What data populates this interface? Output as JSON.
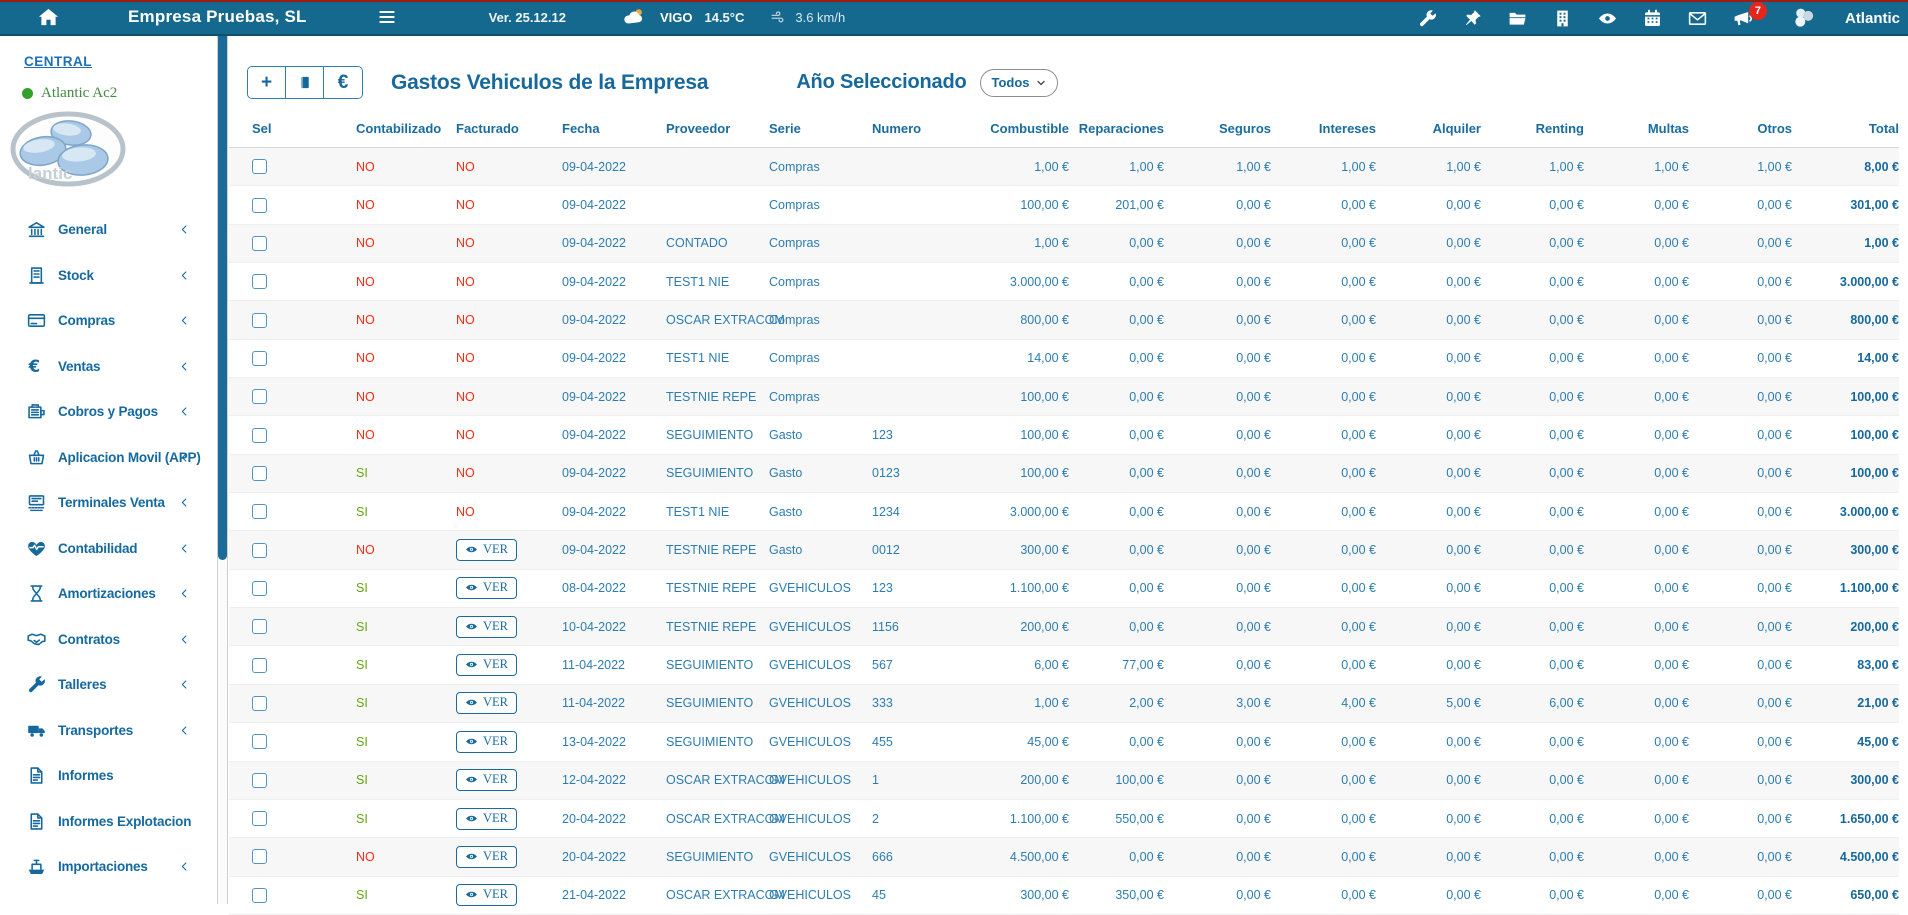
{
  "colors": {
    "topbar_bg": "#15698e",
    "topbar_red_line": "#9e1d12",
    "menu_blue": "#15699f",
    "header_blue": "#1a6c9e",
    "cell_blue": "#2c7cb0",
    "si_green": "#63a611",
    "no_red": "#f92a12",
    "badge_red": "#e5261d",
    "account_green": "#418a41",
    "row_stripe": "#f7f7f7"
  },
  "topbar": {
    "company": "Empresa Pruebas, SL",
    "version": "Ver. 25.12.12",
    "weather_city": "VIGO",
    "weather_temp": "14.5°C",
    "weather_wind": "3.6 km/h",
    "notification_count": "7",
    "brand": "Atlantic",
    "left_icons": [
      "home-icon",
      "menu-icon",
      "cloud-icon",
      "wind-icon"
    ],
    "right_icons": [
      "wrench-icon",
      "pin-icon",
      "folder-icon",
      "building-icon",
      "eye-icon",
      "calendar-icon",
      "mail-icon",
      "megaphone-icon",
      "balloons-icon"
    ]
  },
  "sidebar": {
    "section_label": "CENTRAL",
    "account_label": "Atlantic Ac2",
    "logo_text": "lantic",
    "items": [
      {
        "label": "General",
        "icon": "bank-icon",
        "chevron": true
      },
      {
        "label": "Stock",
        "icon": "building-outline-icon",
        "chevron": true
      },
      {
        "label": "Compras",
        "icon": "card-icon",
        "chevron": true
      },
      {
        "label": "Ventas",
        "icon": "euro-icon",
        "chevron": true
      },
      {
        "label": "Cobros y Pagos",
        "icon": "wallet-icon",
        "chevron": true
      },
      {
        "label": "Aplicacion Movil (APP)",
        "icon": "basket-icon",
        "chevron": true
      },
      {
        "label": "Terminales Venta",
        "icon": "terminal-icon",
        "chevron": true
      },
      {
        "label": "Contabilidad",
        "icon": "heartbeat-icon",
        "chevron": true
      },
      {
        "label": "Amortizaciones",
        "icon": "hourglass-icon",
        "chevron": true
      },
      {
        "label": "Contratos",
        "icon": "handshake-icon",
        "chevron": true
      },
      {
        "label": "Talleres",
        "icon": "wrench-icon",
        "chevron": true
      },
      {
        "label": "Transportes",
        "icon": "truck-icon",
        "chevron": true
      },
      {
        "label": "Informes",
        "icon": "document-icon",
        "chevron": false
      },
      {
        "label": "Informes Explotacion",
        "icon": "document-icon",
        "chevron": false
      },
      {
        "label": "Importaciones",
        "icon": "ship-icon",
        "chevron": true
      }
    ]
  },
  "toolbar": {
    "add_label": "+",
    "book_icon": "book-icon",
    "euro_label": "€"
  },
  "page": {
    "title": "Gastos Vehiculos de la Empresa",
    "year_label": "Año Seleccionado",
    "year_value": "Todos"
  },
  "table": {
    "ver_label": "VER",
    "columns": [
      "Sel",
      "Contabilizado",
      "Facturado",
      "Fecha",
      "Proveedor",
      "Serie",
      "Numero",
      "Combustible",
      "Reparaciones",
      "Seguros",
      "Intereses",
      "Alquiler",
      "Renting",
      "Multas",
      "Otros",
      "Total"
    ],
    "rows": [
      [
        "NO",
        "NO",
        "09-04-2022",
        "",
        "Compras",
        "",
        "1,00 €",
        "1,00 €",
        "1,00 €",
        "1,00 €",
        "1,00 €",
        "1,00 €",
        "1,00 €",
        "1,00 €",
        "8,00 €"
      ],
      [
        "NO",
        "NO",
        "09-04-2022",
        "",
        "Compras",
        "",
        "100,00 €",
        "201,00 €",
        "0,00 €",
        "0,00 €",
        "0,00 €",
        "0,00 €",
        "0,00 €",
        "0,00 €",
        "301,00 €"
      ],
      [
        "NO",
        "NO",
        "09-04-2022",
        "CONTADO",
        "Compras",
        "",
        "1,00 €",
        "0,00 €",
        "0,00 €",
        "0,00 €",
        "0,00 €",
        "0,00 €",
        "0,00 €",
        "0,00 €",
        "1,00 €"
      ],
      [
        "NO",
        "NO",
        "09-04-2022",
        "TEST1 NIE",
        "Compras",
        "",
        "3.000,00 €",
        "0,00 €",
        "0,00 €",
        "0,00 €",
        "0,00 €",
        "0,00 €",
        "0,00 €",
        "0,00 €",
        "3.000,00 €"
      ],
      [
        "NO",
        "NO",
        "09-04-2022",
        "OSCAR EXTRACOM",
        "Compras",
        "",
        "800,00 €",
        "0,00 €",
        "0,00 €",
        "0,00 €",
        "0,00 €",
        "0,00 €",
        "0,00 €",
        "0,00 €",
        "800,00 €"
      ],
      [
        "NO",
        "NO",
        "09-04-2022",
        "TEST1 NIE",
        "Compras",
        "",
        "14,00 €",
        "0,00 €",
        "0,00 €",
        "0,00 €",
        "0,00 €",
        "0,00 €",
        "0,00 €",
        "0,00 €",
        "14,00 €"
      ],
      [
        "NO",
        "NO",
        "09-04-2022",
        "TESTNIE REPE",
        "Compras",
        "",
        "100,00 €",
        "0,00 €",
        "0,00 €",
        "0,00 €",
        "0,00 €",
        "0,00 €",
        "0,00 €",
        "0,00 €",
        "100,00 €"
      ],
      [
        "NO",
        "NO",
        "09-04-2022",
        "SEGUIMIENTO",
        "Gasto",
        "123",
        "100,00 €",
        "0,00 €",
        "0,00 €",
        "0,00 €",
        "0,00 €",
        "0,00 €",
        "0,00 €",
        "0,00 €",
        "100,00 €"
      ],
      [
        "SI",
        "NO",
        "09-04-2022",
        "SEGUIMIENTO",
        "Gasto",
        "0123",
        "100,00 €",
        "0,00 €",
        "0,00 €",
        "0,00 €",
        "0,00 €",
        "0,00 €",
        "0,00 €",
        "0,00 €",
        "100,00 €"
      ],
      [
        "SI",
        "NO",
        "09-04-2022",
        "TEST1 NIE",
        "Gasto",
        "1234",
        "3.000,00 €",
        "0,00 €",
        "0,00 €",
        "0,00 €",
        "0,00 €",
        "0,00 €",
        "0,00 €",
        "0,00 €",
        "3.000,00 €"
      ],
      [
        "NO",
        "VER",
        "09-04-2022",
        "TESTNIE REPE",
        "Gasto",
        "0012",
        "300,00 €",
        "0,00 €",
        "0,00 €",
        "0,00 €",
        "0,00 €",
        "0,00 €",
        "0,00 €",
        "0,00 €",
        "300,00 €"
      ],
      [
        "SI",
        "VER",
        "08-04-2022",
        "TESTNIE REPE",
        "GVEHICULOS",
        "123",
        "1.100,00 €",
        "0,00 €",
        "0,00 €",
        "0,00 €",
        "0,00 €",
        "0,00 €",
        "0,00 €",
        "0,00 €",
        "1.100,00 €"
      ],
      [
        "SI",
        "VER",
        "10-04-2022",
        "TESTNIE REPE",
        "GVEHICULOS",
        "1156",
        "200,00 €",
        "0,00 €",
        "0,00 €",
        "0,00 €",
        "0,00 €",
        "0,00 €",
        "0,00 €",
        "0,00 €",
        "200,00 €"
      ],
      [
        "SI",
        "VER",
        "11-04-2022",
        "SEGUIMIENTO",
        "GVEHICULOS",
        "567",
        "6,00 €",
        "77,00 €",
        "0,00 €",
        "0,00 €",
        "0,00 €",
        "0,00 €",
        "0,00 €",
        "0,00 €",
        "83,00 €"
      ],
      [
        "SI",
        "VER",
        "11-04-2022",
        "SEGUIMIENTO",
        "GVEHICULOS",
        "333",
        "1,00 €",
        "2,00 €",
        "3,00 €",
        "4,00 €",
        "5,00 €",
        "6,00 €",
        "0,00 €",
        "0,00 €",
        "21,00 €"
      ],
      [
        "SI",
        "VER",
        "13-04-2022",
        "SEGUIMIENTO",
        "GVEHICULOS",
        "455",
        "45,00 €",
        "0,00 €",
        "0,00 €",
        "0,00 €",
        "0,00 €",
        "0,00 €",
        "0,00 €",
        "0,00 €",
        "45,00 €"
      ],
      [
        "SI",
        "VER",
        "12-04-2022",
        "OSCAR EXTRACOM",
        "GVEHICULOS",
        "1",
        "200,00 €",
        "100,00 €",
        "0,00 €",
        "0,00 €",
        "0,00 €",
        "0,00 €",
        "0,00 €",
        "0,00 €",
        "300,00 €"
      ],
      [
        "SI",
        "VER",
        "20-04-2022",
        "OSCAR EXTRACOM",
        "GVEHICULOS",
        "2",
        "1.100,00 €",
        "550,00 €",
        "0,00 €",
        "0,00 €",
        "0,00 €",
        "0,00 €",
        "0,00 €",
        "0,00 €",
        "1.650,00 €"
      ],
      [
        "NO",
        "VER",
        "20-04-2022",
        "SEGUIMIENTO",
        "GVEHICULOS",
        "666",
        "4.500,00 €",
        "0,00 €",
        "0,00 €",
        "0,00 €",
        "0,00 €",
        "0,00 €",
        "0,00 €",
        "0,00 €",
        "4.500,00 €"
      ],
      [
        "SI",
        "VER",
        "21-04-2022",
        "OSCAR EXTRACOM",
        "GVEHICULOS",
        "45",
        "300,00 €",
        "350,00 €",
        "0,00 €",
        "0,00 €",
        "0,00 €",
        "0,00 €",
        "0,00 €",
        "0,00 €",
        "650,00 €"
      ]
    ]
  }
}
